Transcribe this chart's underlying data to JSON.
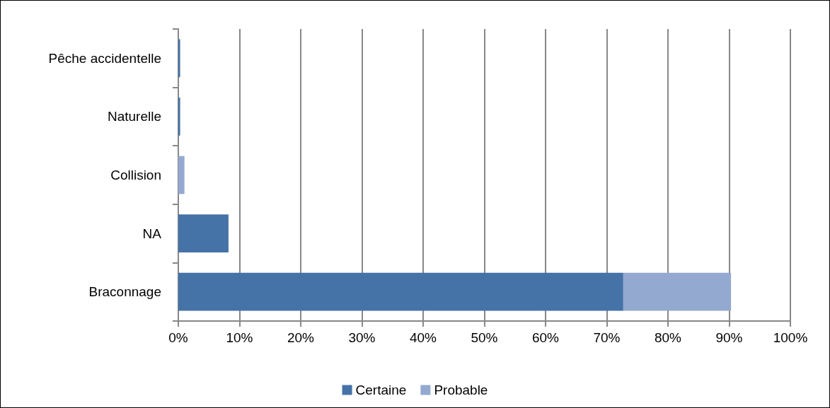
{
  "chart_data": {
    "type": "bar",
    "orientation": "horizontal",
    "stacked": true,
    "categories": [
      "Pêche accidentelle",
      "Naturelle",
      "Collision",
      "NA",
      "Braconnage"
    ],
    "series": [
      {
        "name": "Certaine",
        "color": "#4572a7",
        "values": [
          0.3,
          0.3,
          0,
          8.2,
          72.7
        ]
      },
      {
        "name": "Probable",
        "color": "#93a9cf",
        "values": [
          0,
          0,
          1.0,
          0,
          17.6
        ]
      }
    ],
    "xlim": [
      0,
      100
    ],
    "xticks": [
      {
        "value": 0,
        "label": "0%"
      },
      {
        "value": 10,
        "label": "10%"
      },
      {
        "value": 20,
        "label": "20%"
      },
      {
        "value": 30,
        "label": "30%"
      },
      {
        "value": 40,
        "label": "40%"
      },
      {
        "value": 50,
        "label": "50%"
      },
      {
        "value": 60,
        "label": "60%"
      },
      {
        "value": 70,
        "label": "70%"
      },
      {
        "value": 80,
        "label": "80%"
      },
      {
        "value": 90,
        "label": "90%"
      },
      {
        "value": 100,
        "label": "100%"
      }
    ],
    "grid": "x",
    "legend": "bottom"
  }
}
